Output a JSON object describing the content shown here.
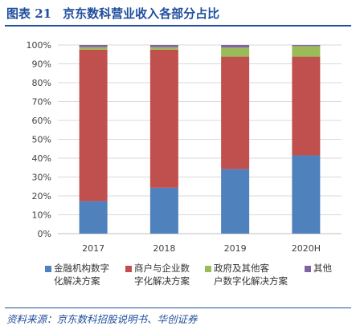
{
  "header": {
    "figure_no": "图表 21",
    "title": "京东数科营业收入各部分占比"
  },
  "footer": {
    "source_label": "资料来源：",
    "source_text": "京东数科招股说明书、华创证券"
  },
  "chart_data": {
    "type": "bar",
    "stacked": true,
    "categories": [
      "2017",
      "2018",
      "2019",
      "2020H"
    ],
    "series": [
      {
        "name": "金融机构数字化解决方案",
        "color": "#4f81bd",
        "values": [
          17.2,
          24.3,
          34.2,
          41.5
        ]
      },
      {
        "name": "商户与企业数字化解决方案",
        "color": "#c0504d",
        "values": [
          80.3,
          73.2,
          59.6,
          52.3
        ]
      },
      {
        "name": "政府及其他客户数字化解决方案",
        "color": "#9bbb59",
        "values": [
          1.3,
          1.3,
          4.8,
          5.6
        ]
      },
      {
        "name": "其他",
        "color": "#8064a2",
        "values": [
          1.2,
          1.2,
          1.4,
          0.6
        ]
      }
    ],
    "yticks": [
      "0%",
      "10%",
      "20%",
      "30%",
      "40%",
      "50%",
      "60%",
      "70%",
      "80%",
      "90%",
      "100%"
    ],
    "ylim": [
      0,
      100
    ],
    "grid": true,
    "legend_position": "bottom"
  },
  "legend_lines": [
    [
      "金融机构数字",
      "化解决方案"
    ],
    [
      "商户与企业数",
      "字化解决方案"
    ],
    [
      "政府及其他客",
      "户数字化解决方案"
    ],
    [
      "其他"
    ]
  ]
}
